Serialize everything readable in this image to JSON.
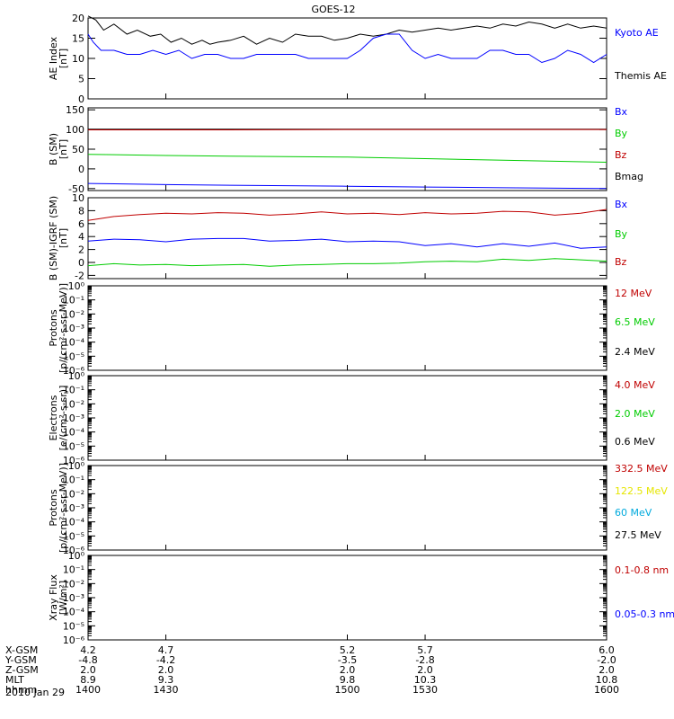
{
  "title": "GOES-12",
  "date_label": "2010 Jan 29",
  "colors": {
    "black": "#000000",
    "blue": "#0000ff",
    "red": "#c00000",
    "green": "#00cc00",
    "yellow": "#e6e600",
    "cyan": "#00aadd"
  },
  "chart_data": [
    {
      "type": "line",
      "id": "ae",
      "ylabel": "AE Index",
      "yunit": "[nT]",
      "ylim": [
        0,
        20
      ],
      "yticks": [
        0,
        5,
        10,
        15,
        20
      ],
      "legend": [
        {
          "label": "Kyoto AE",
          "color": "#0000ff"
        },
        {
          "label": "Themis AE",
          "color": "#000000"
        }
      ],
      "series": [
        {
          "color": "#000000",
          "x": [
            1400,
            1403,
            1406,
            1410,
            1415,
            1419,
            1424,
            1428,
            1432,
            1436,
            1440,
            1444,
            1447,
            1450,
            1455,
            1460,
            1465,
            1470,
            1475,
            1480,
            1485,
            1490,
            1495,
            1500,
            1505,
            1510,
            1515,
            1520,
            1525,
            1530,
            1535,
            1540,
            1545,
            1550,
            1555,
            1560,
            1565,
            1570,
            1575,
            1580,
            1585,
            1590,
            1595,
            1600
          ],
          "y": [
            20.5,
            19.5,
            17,
            18.5,
            16,
            17,
            15.5,
            16,
            14,
            15,
            13.5,
            14.5,
            13.5,
            14,
            14.5,
            15.5,
            13.5,
            15,
            14,
            16,
            15.5,
            15.5,
            14.5,
            15,
            16,
            15.5,
            16,
            17,
            16.5,
            17,
            17.5,
            17,
            17.5,
            18,
            17.5,
            18.5,
            18,
            19,
            18.5,
            17.5,
            18.5,
            17.5,
            18,
            17.5
          ]
        },
        {
          "color": "#0000ff",
          "x": [
            1400,
            1402,
            1405,
            1410,
            1415,
            1420,
            1425,
            1430,
            1435,
            1440,
            1445,
            1450,
            1455,
            1460,
            1465,
            1470,
            1475,
            1480,
            1485,
            1490,
            1495,
            1500,
            1505,
            1510,
            1515,
            1520,
            1525,
            1530,
            1535,
            1540,
            1545,
            1550,
            1555,
            1560,
            1565,
            1570,
            1575,
            1580,
            1585,
            1590,
            1595,
            1600
          ],
          "y": [
            16,
            14,
            12,
            12,
            11,
            11,
            12,
            11,
            12,
            10,
            11,
            11,
            10,
            10,
            11,
            11,
            11,
            11,
            10,
            10,
            10,
            10,
            12,
            15,
            16,
            16,
            12,
            10,
            11,
            10,
            10,
            10,
            12,
            12,
            11,
            11,
            9,
            10,
            12,
            11,
            9,
            11
          ]
        }
      ]
    },
    {
      "type": "line",
      "id": "b",
      "ylabel": "B (SM)",
      "yunit": "[nT]",
      "ylim": [
        -55,
        155
      ],
      "yticks": [
        -50,
        0,
        50,
        100,
        150
      ],
      "legend": [
        {
          "label": "Bx",
          "color": "#0000ff"
        },
        {
          "label": "By",
          "color": "#00cc00"
        },
        {
          "label": "Bz",
          "color": "#c00000"
        },
        {
          "label": "Bmag",
          "color": "#000000"
        }
      ],
      "series": [
        {
          "color": "#000000",
          "x": [
            1400,
            1600
          ],
          "y": [
            101,
            101
          ]
        },
        {
          "color": "#c00000",
          "x": [
            1400,
            1450,
            1500,
            1550,
            1600
          ],
          "y": [
            99,
            99,
            100,
            100,
            100
          ]
        },
        {
          "color": "#00cc00",
          "x": [
            1400,
            1430,
            1460,
            1500,
            1530,
            1560,
            1600
          ],
          "y": [
            37,
            34,
            32,
            30,
            26,
            22,
            17
          ]
        },
        {
          "color": "#0000ff",
          "x": [
            1400,
            1430,
            1460,
            1500,
            1530,
            1560,
            1600
          ],
          "y": [
            -37,
            -40,
            -42,
            -44,
            -46,
            -48,
            -50
          ]
        }
      ]
    },
    {
      "type": "line",
      "id": "bdiff",
      "ylabel": "B (SM)-IGRF (SM)",
      "yunit": "[nT]",
      "ylim": [
        -2.5,
        10
      ],
      "yticks": [
        -2,
        0,
        2,
        4,
        6,
        8,
        10
      ],
      "legend": [
        {
          "label": "Bx",
          "color": "#0000ff"
        },
        {
          "label": "By",
          "color": "#00cc00"
        },
        {
          "label": "Bz",
          "color": "#c00000"
        }
      ],
      "series": [
        {
          "color": "#c00000",
          "x": [
            1400,
            1410,
            1420,
            1430,
            1440,
            1450,
            1460,
            1470,
            1480,
            1490,
            1500,
            1510,
            1520,
            1530,
            1540,
            1550,
            1560,
            1570,
            1580,
            1590,
            1600
          ],
          "y": [
            6.5,
            7.1,
            7.4,
            7.6,
            7.5,
            7.7,
            7.6,
            7.3,
            7.5,
            7.8,
            7.5,
            7.6,
            7.4,
            7.7,
            7.5,
            7.6,
            7.9,
            7.8,
            7.3,
            7.6,
            8.2
          ]
        },
        {
          "color": "#0000ff",
          "x": [
            1400,
            1410,
            1420,
            1430,
            1440,
            1450,
            1460,
            1470,
            1480,
            1490,
            1500,
            1510,
            1520,
            1530,
            1540,
            1550,
            1560,
            1570,
            1580,
            1590,
            1600
          ],
          "y": [
            3.3,
            3.6,
            3.5,
            3.2,
            3.6,
            3.7,
            3.7,
            3.3,
            3.4,
            3.6,
            3.2,
            3.3,
            3.2,
            2.6,
            2.9,
            2.4,
            2.9,
            2.5,
            3.0,
            2.2,
            2.4
          ]
        },
        {
          "color": "#00cc00",
          "x": [
            1400,
            1410,
            1420,
            1430,
            1440,
            1450,
            1460,
            1470,
            1480,
            1490,
            1500,
            1510,
            1520,
            1530,
            1540,
            1550,
            1560,
            1570,
            1580,
            1590,
            1600
          ],
          "y": [
            -0.5,
            -0.2,
            -0.4,
            -0.3,
            -0.5,
            -0.4,
            -0.3,
            -0.6,
            -0.4,
            -0.3,
            -0.2,
            -0.2,
            -0.1,
            0.1,
            0.2,
            0.1,
            0.5,
            0.3,
            0.6,
            0.4,
            0.2
          ]
        }
      ]
    },
    {
      "type": "line",
      "id": "protons1",
      "ylabel": "Protons",
      "yunit": "[p/(cm²-s-sr-MeV)]",
      "yscale": "log",
      "ylim": [
        -6,
        0
      ],
      "yticks": [
        -6,
        -5,
        -4,
        -3,
        -2,
        -1,
        0
      ],
      "legend": [
        {
          "label": "12 MeV",
          "color": "#c00000"
        },
        {
          "label": "6.5 MeV",
          "color": "#00cc00"
        },
        {
          "label": "2.4 MeV",
          "color": "#000000"
        }
      ],
      "series": []
    },
    {
      "type": "line",
      "id": "electrons",
      "ylabel": "Electrons",
      "yunit": "[e/(cm²-s-sr)]",
      "yscale": "log",
      "ylim": [
        -6,
        0
      ],
      "yticks": [
        -6,
        -5,
        -4,
        -3,
        -2,
        -1,
        0
      ],
      "legend": [
        {
          "label": "4.0 MeV",
          "color": "#c00000"
        },
        {
          "label": "2.0 MeV",
          "color": "#00cc00"
        },
        {
          "label": "0.6 MeV",
          "color": "#000000"
        }
      ],
      "series": []
    },
    {
      "type": "line",
      "id": "protons2",
      "ylabel": "Protons",
      "yunit": "[p/(cm²-s-sr-MeV)]",
      "yscale": "log",
      "ylim": [
        -6,
        0
      ],
      "yticks": [
        -6,
        -5,
        -4,
        -3,
        -2,
        -1,
        0
      ],
      "legend": [
        {
          "label": "332.5 MeV",
          "color": "#c00000"
        },
        {
          "label": "122.5 MeV",
          "color": "#e6e600"
        },
        {
          "label": "60 MeV",
          "color": "#00aadd"
        },
        {
          "label": "27.5 MeV",
          "color": "#000000"
        }
      ],
      "series": []
    },
    {
      "type": "line",
      "id": "xray",
      "ylabel": "Xray Flux",
      "yunit": "[W/m²]",
      "yscale": "log",
      "ylim": [
        -6,
        0
      ],
      "yticks": [
        -6,
        -5,
        -4,
        -3,
        -2,
        -1,
        0
      ],
      "legend": [
        {
          "label": "0.1-0.8 nm",
          "color": "#c00000"
        },
        {
          "label": "0.05-0.3 nm",
          "color": "#0000ff"
        }
      ],
      "series": []
    }
  ],
  "x_axis": {
    "xlim": [
      1400,
      1600
    ],
    "positions": [
      1400,
      1430,
      1500,
      1530,
      1600
    ],
    "rows": [
      {
        "label": "X-GSM",
        "values": [
          "4.2",
          "4.7",
          "5.2",
          "5.7",
          "6.0"
        ]
      },
      {
        "label": "Y-GSM",
        "values": [
          "-4.8",
          "-4.2",
          "-3.5",
          "-2.8",
          "-2.0"
        ]
      },
      {
        "label": "Z-GSM",
        "values": [
          "2.0",
          "2.0",
          "2.0",
          "2.0",
          "2.0"
        ]
      },
      {
        "label": "MLT",
        "values": [
          "8.9",
          "9.3",
          "9.8",
          "10.3",
          "10.8"
        ]
      },
      {
        "label": "hhmm",
        "values": [
          "1400",
          "1430",
          "1500",
          "1530",
          "1600"
        ]
      }
    ]
  }
}
